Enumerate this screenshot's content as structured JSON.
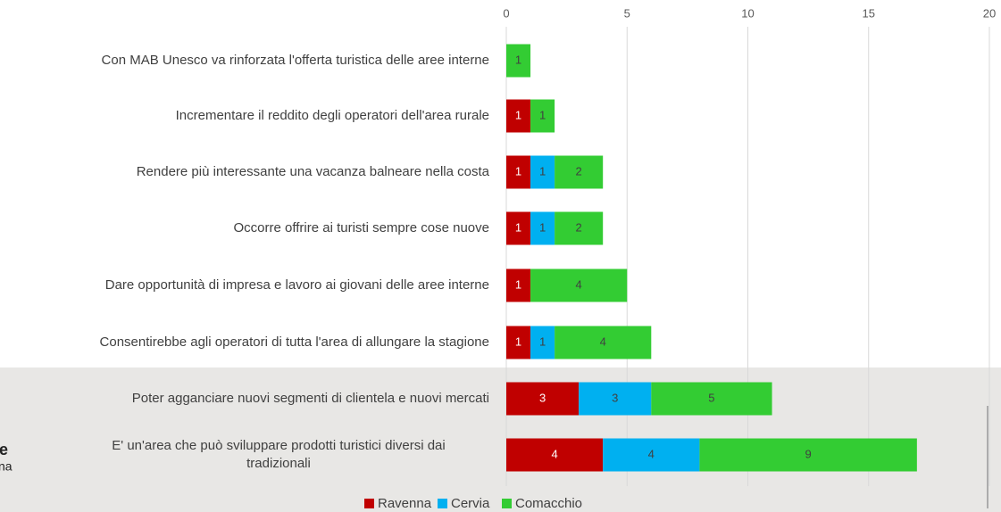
{
  "chart_data": {
    "type": "stacked-bar-horizontal",
    "categories": [
      "Con MAB Unesco va rinforzata l'offerta turistica delle aree interne",
      "Incrementare il reddito degli operatori dell'area rurale",
      "Rendere più interessante  una vacanza balneare nella costa",
      "Occorre offrire ai turisti sempre cose nuove",
      "Dare opportunità di impresa e lavoro ai giovani delle aree interne",
      "Consentirebbe agli operatori di tutta l'area di allungare la stagione",
      "Poter agganciare nuovi segmenti di clientela e nuovi mercati",
      "E' un'area che può sviluppare prodotti turistici diversi dai\ntradizionali"
    ],
    "series": [
      {
        "name": "Ravenna",
        "color": "#c00000",
        "values": [
          null,
          1,
          1,
          1,
          1,
          1,
          3,
          4
        ]
      },
      {
        "name": "Cervia",
        "color": "#00b0f0",
        "values": [
          null,
          null,
          1,
          1,
          null,
          1,
          3,
          4
        ]
      },
      {
        "name": "Comacchio",
        "color": "#33cc33",
        "values": [
          1,
          1,
          2,
          2,
          4,
          4,
          5,
          9
        ]
      }
    ],
    "xlim": [
      0,
      20
    ],
    "xticks": [
      0,
      5,
      10,
      15,
      20
    ],
    "grid": true,
    "legend": "bottom",
    "annotations": [
      "e",
      "na"
    ]
  }
}
